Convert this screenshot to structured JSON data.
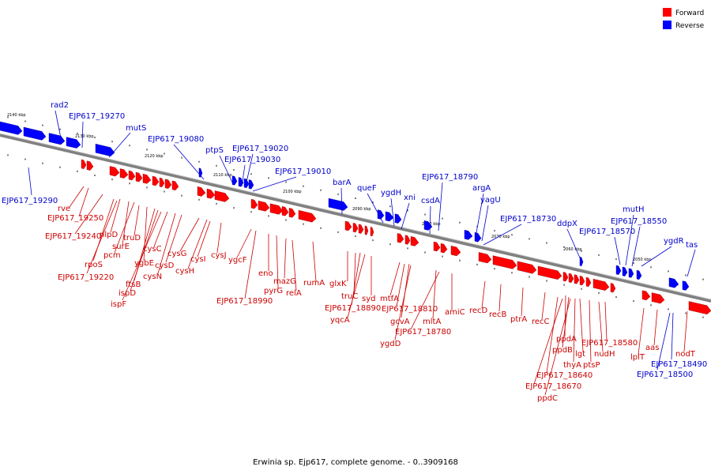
{
  "caption": "Erwinia sp. Ejp617, complete genome. - 0..3909168",
  "legend": [
    {
      "label": "Forward",
      "color": "#ff0000"
    },
    {
      "label": "Reverse",
      "color": "#0000ff"
    }
  ],
  "colors": {
    "forward": "#ff0000",
    "reverse": "#0000ff",
    "backbone": "#808080",
    "label_forward": "#cc0000",
    "label_reverse": "#0000cc"
  },
  "ticks": [
    "2140 kbp",
    "2130 kbp",
    "2120 kbp",
    "2110 kbp",
    "2100 kbp",
    "2090 kbp",
    "2080 kbp",
    "2070 kbp",
    "2060 kbp",
    "2050 kbp"
  ],
  "reverse_labels": [
    "rad2",
    "EJP617_19270",
    "mutS",
    "EJP617_19290",
    "EJP617_19080",
    "ptpS",
    "EJP617_19020",
    "EJP617_19030",
    "EJP617_19010",
    "barA",
    "queF",
    "ygdH",
    "xni",
    "EJP617_18790",
    "csdA",
    "argA",
    "yagU",
    "EJP617_18730",
    "ddpX",
    "EJP617_18570",
    "mutH",
    "EJP617_18550",
    "ygdR",
    "tas",
    "EJP617_18490",
    "EJP617_18500"
  ],
  "forward_labels": [
    "rve",
    "EJP617_19250",
    "EJP617_19240",
    "rpoS",
    "nlpD",
    "surE",
    "pcm",
    "truD",
    "EJP617_19220",
    "ygbE",
    "ftsB",
    "ispD",
    "ispF",
    "cysC",
    "cysN",
    "cysD",
    "cysG",
    "cysH",
    "cysI",
    "cysJ",
    "ygcF",
    "EJP617_18990",
    "eno",
    "pyrG",
    "mazG",
    "relA",
    "rumA",
    "glxK",
    "truC",
    "EJP617_18890",
    "yqcA",
    "syd",
    "mtfA",
    "gcvA",
    "EJP617_18810",
    "ygdD",
    "mltA",
    "EJP617_18780",
    "amiC",
    "recD",
    "recB",
    "ptrA",
    "recC",
    "ppdA",
    "ppdB",
    "lgt",
    "thyA",
    "ptsP",
    "nudH",
    "EJP617_18580",
    "EJP617_18640",
    "EJP617_18670",
    "ppdC",
    "lplT",
    "aas",
    "nodT"
  ]
}
